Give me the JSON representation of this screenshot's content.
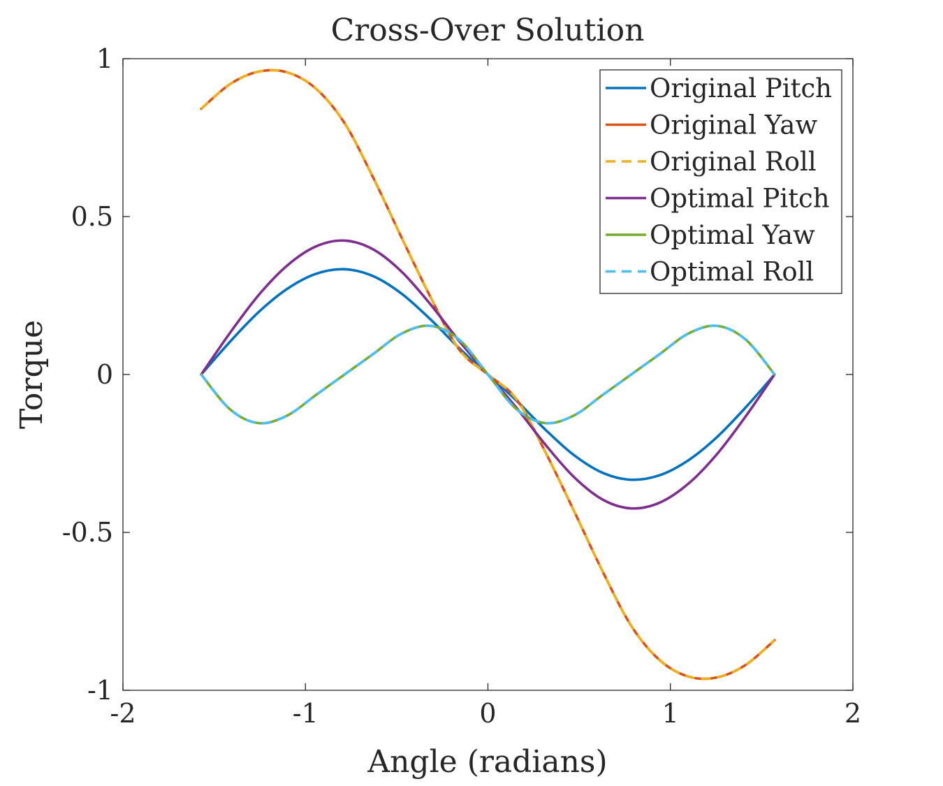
{
  "chart_data": {
    "type": "line",
    "title": "Cross-Over Solution",
    "xlabel": "Angle (radians)",
    "ylabel": "Torque",
    "xlim": [
      -2,
      2
    ],
    "ylim": [
      -1,
      1
    ],
    "xticks": [
      -2,
      -1,
      0,
      1,
      2
    ],
    "xtick_labels": [
      "-2",
      "-1",
      "0",
      "1",
      "2"
    ],
    "yticks": [
      -1,
      -0.5,
      0,
      0.5,
      1
    ],
    "ytick_labels": [
      "-1",
      "-0.5",
      "0",
      "0.5",
      "1"
    ],
    "grid": false,
    "box": true,
    "legend_position": "top-right",
    "x": [
      -1.5708,
      -1.4137,
      -1.2566,
      -1.0996,
      -0.9425,
      -0.7854,
      -0.6283,
      -0.4712,
      -0.3142,
      -0.1571,
      0.0,
      0.1571,
      0.3142,
      0.4712,
      0.6283,
      0.7854,
      0.9425,
      1.0996,
      1.2566,
      1.4137,
      1.5708
    ],
    "series": [
      {
        "name": "Original Pitch",
        "color": "#0072BD",
        "dash": "solid",
        "values": [
          0.0,
          0.1035,
          0.1975,
          0.2713,
          0.3188,
          0.3333,
          0.3113,
          0.2552,
          0.1743,
          0.0832,
          0.0,
          -0.0832,
          -0.1743,
          -0.2552,
          -0.3113,
          -0.3333,
          -0.3188,
          -0.2713,
          -0.1975,
          -0.1035,
          0.0
        ]
      },
      {
        "name": "Original Yaw",
        "color": "#D95319",
        "dash": "solid",
        "values": [
          0.8415,
          0.9192,
          0.9591,
          0.9567,
          0.9052,
          0.7959,
          0.6231,
          0.4314,
          0.2447,
          0.0786,
          0.0,
          -0.0786,
          -0.2447,
          -0.4314,
          -0.6231,
          -0.7959,
          -0.9052,
          -0.9567,
          -0.9591,
          -0.9192,
          -0.8415
        ]
      },
      {
        "name": "Original Roll",
        "color": "#EDB120",
        "dash": "dashed",
        "values": [
          0.8415,
          0.9192,
          0.9591,
          0.9567,
          0.9052,
          0.7959,
          0.6231,
          0.4314,
          0.2447,
          0.0786,
          0.0,
          -0.0786,
          -0.2447,
          -0.4314,
          -0.6231,
          -0.7959,
          -0.9052,
          -0.9567,
          -0.9591,
          -0.9192,
          -0.8415
        ]
      },
      {
        "name": "Optimal Pitch",
        "color": "#7E2F8E",
        "dash": "solid",
        "values": [
          0.0,
          0.1316,
          0.2512,
          0.3452,
          0.4055,
          0.424,
          0.396,
          0.3246,
          0.2217,
          0.1058,
          0.0,
          -0.1058,
          -0.2217,
          -0.3246,
          -0.396,
          -0.424,
          -0.4055,
          -0.3452,
          -0.2512,
          -0.1316,
          0.0
        ]
      },
      {
        "name": "Optimal Yaw",
        "color": "#77AC30",
        "dash": "solid",
        "values": [
          0.0,
          -0.11,
          -0.154,
          -0.13,
          -0.065,
          0.0,
          0.065,
          0.13,
          0.154,
          0.11,
          0.0,
          -0.11,
          -0.154,
          -0.13,
          -0.065,
          0.0,
          0.065,
          0.13,
          0.154,
          0.11,
          0.0
        ]
      },
      {
        "name": "Optimal Roll",
        "color": "#4DBEEE",
        "dash": "dashed",
        "values": [
          0.0,
          -0.11,
          -0.154,
          -0.13,
          -0.065,
          0.0,
          0.065,
          0.13,
          0.154,
          0.11,
          0.0,
          -0.11,
          -0.154,
          -0.13,
          -0.065,
          0.0,
          0.065,
          0.13,
          0.154,
          0.11,
          0.0
        ]
      }
    ]
  }
}
